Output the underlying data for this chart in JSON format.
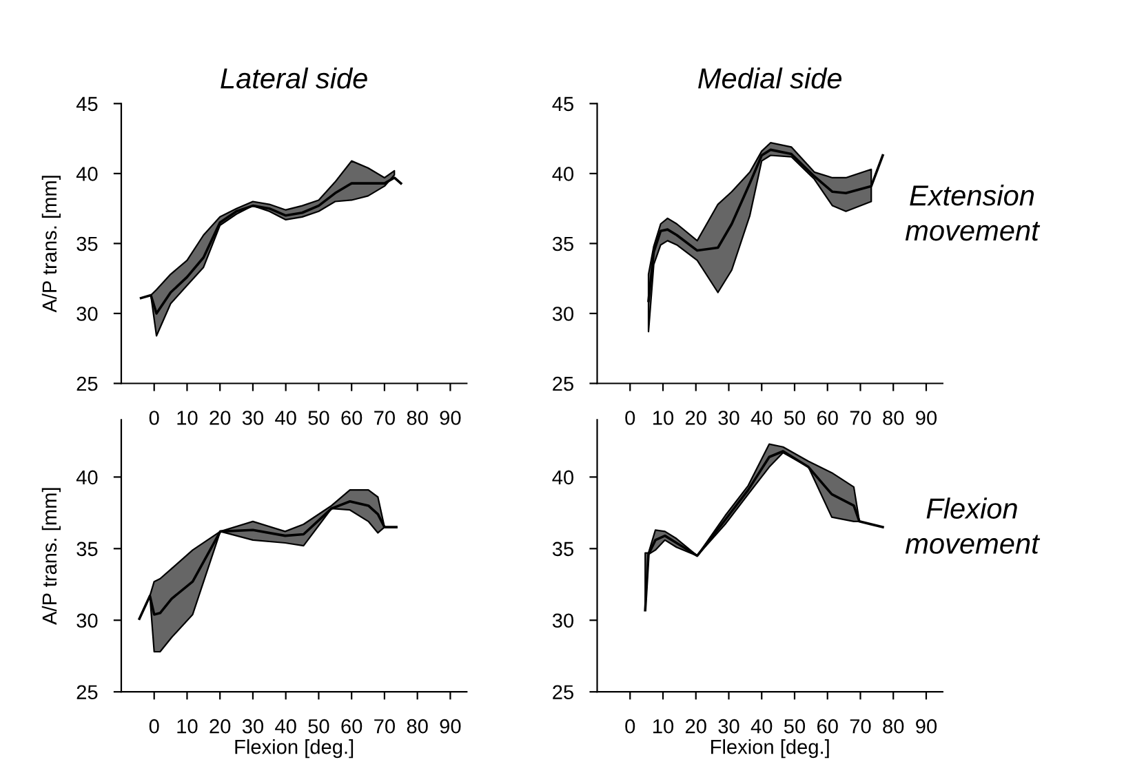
{
  "chart_data": [
    {
      "type": "line",
      "title": "Lateral side",
      "ylabel": "A/P trans. [mm]",
      "xlim": [
        -10,
        95
      ],
      "xticks": [
        0,
        10,
        20,
        30,
        40,
        50,
        60,
        70,
        80,
        90
      ],
      "ylim": [
        25,
        45
      ],
      "yticks": [
        25,
        30,
        35,
        40,
        45
      ],
      "grid": false,
      "legend": false,
      "x": [
        -4,
        -1,
        0.7,
        5,
        10,
        15,
        20,
        25,
        30,
        35,
        40,
        45,
        50,
        55,
        60,
        65,
        70,
        73,
        75
      ],
      "series": [
        {
          "color": "#000000",
          "values": [
            31.1,
            31.3,
            30.0,
            31.5,
            32.6,
            34.0,
            36.5,
            37.3,
            37.7,
            37.5,
            37.0,
            37.2,
            37.7,
            38.6,
            39.3,
            39.3,
            39.3,
            39.7,
            39.3
          ],
          "upper": [
            null,
            31.3,
            31.7,
            32.8,
            33.8,
            35.6,
            36.9,
            37.5,
            38.0,
            37.8,
            37.4,
            37.7,
            38.1,
            39.4,
            40.9,
            40.4,
            39.7,
            40.2,
            null
          ],
          "lower": [
            null,
            31.3,
            28.4,
            30.7,
            32.0,
            33.3,
            36.3,
            37.1,
            37.7,
            37.3,
            36.7,
            36.9,
            37.3,
            38.0,
            38.1,
            38.4,
            39.1,
            39.9,
            null
          ]
        }
      ]
    },
    {
      "type": "line",
      "title": "Medial side",
      "xlim": [
        -10,
        95
      ],
      "xticks": [
        0,
        10,
        20,
        30,
        40,
        50,
        60,
        70,
        80,
        90
      ],
      "ylim": [
        25,
        45
      ],
      "yticks": [
        25,
        30,
        35,
        40,
        45
      ],
      "grid": false,
      "legend": false,
      "annotations": [
        "Extension\nmovement"
      ],
      "x": [
        5.6,
        7.2,
        9.3,
        11.4,
        14.2,
        20.4,
        26.7,
        30.9,
        36.4,
        40,
        42.7,
        49,
        56,
        61.5,
        65.6,
        73.3,
        76.8
      ],
      "series": [
        {
          "color": "#000000",
          "values": [
            30.9,
            34.4,
            35.9,
            36.0,
            35.6,
            34.5,
            34.7,
            36.4,
            39.3,
            41.3,
            41.7,
            41.4,
            39.8,
            38.7,
            38.6,
            39.1,
            41.3
          ],
          "upper": [
            32.8,
            34.8,
            36.4,
            36.8,
            36.4,
            35.2,
            37.8,
            38.7,
            40.1,
            41.6,
            42.2,
            41.9,
            40.1,
            39.7,
            39.7,
            40.3,
            null
          ],
          "lower": [
            28.7,
            33.5,
            34.9,
            35.2,
            34.9,
            33.8,
            31.5,
            33.1,
            37.0,
            40.9,
            41.3,
            41.2,
            39.6,
            37.7,
            37.3,
            38.0,
            null
          ]
        }
      ]
    },
    {
      "type": "line",
      "ylabel": "A/P trans. [mm]",
      "xlabel": "Flexion [deg.]",
      "xlim": [
        -10,
        95
      ],
      "xticks": [
        0,
        10,
        20,
        30,
        40,
        50,
        60,
        70,
        80,
        90
      ],
      "ylim": [
        25,
        44
      ],
      "yticks": [
        25,
        30,
        35,
        40
      ],
      "grid": false,
      "legend": false,
      "x": [
        -4.5,
        -1.3,
        0,
        1.8,
        5.3,
        11.7,
        20.1,
        30,
        39.8,
        45.4,
        53.9,
        59.5,
        65.1,
        68,
        70,
        73.6
      ],
      "series": [
        {
          "color": "#000000",
          "values": [
            30.1,
            31.7,
            30.4,
            30.5,
            31.5,
            32.7,
            36.2,
            36.3,
            35.9,
            36.0,
            37.8,
            38.3,
            38.0,
            37.4,
            36.5,
            36.5
          ],
          "upper": [
            null,
            31.7,
            32.7,
            32.9,
            33.6,
            34.9,
            36.2,
            36.9,
            36.2,
            36.7,
            38.0,
            39.1,
            39.1,
            38.6,
            36.5,
            null
          ],
          "lower": [
            null,
            31.7,
            27.8,
            27.8,
            28.8,
            30.4,
            36.2,
            35.6,
            35.4,
            35.2,
            37.8,
            37.7,
            36.9,
            36.1,
            36.5,
            null
          ]
        }
      ]
    },
    {
      "type": "line",
      "xlabel": "Flexion [deg.]",
      "xlim": [
        -10,
        95
      ],
      "xticks": [
        0,
        10,
        20,
        30,
        40,
        50,
        60,
        70,
        80,
        90
      ],
      "ylim": [
        25,
        44
      ],
      "yticks": [
        25,
        30,
        35,
        40
      ],
      "grid": false,
      "legend": false,
      "annotations": [
        "Flexion\nmovement"
      ],
      "x": [
        4.6,
        5.6,
        7.7,
        10.6,
        14.1,
        20.4,
        28.9,
        35.9,
        42.3,
        46.5,
        54.2,
        61.3,
        68,
        69.7,
        76.8
      ],
      "series": [
        {
          "color": "#000000",
          "values": [
            30.7,
            34.6,
            35.6,
            35.9,
            35.4,
            34.5,
            37.0,
            39.1,
            41.4,
            41.8,
            40.7,
            38.8,
            38.0,
            36.9,
            36.5
          ],
          "upper": [
            34.7,
            34.7,
            36.3,
            36.2,
            35.7,
            34.5,
            37.3,
            39.4,
            42.3,
            42.1,
            41.1,
            40.3,
            39.3,
            36.9,
            null
          ],
          "lower": [
            30.7,
            34.6,
            34.9,
            35.6,
            35.1,
            34.5,
            36.7,
            38.8,
            40.7,
            41.7,
            40.7,
            37.2,
            36.9,
            36.9,
            null
          ]
        }
      ]
    }
  ]
}
